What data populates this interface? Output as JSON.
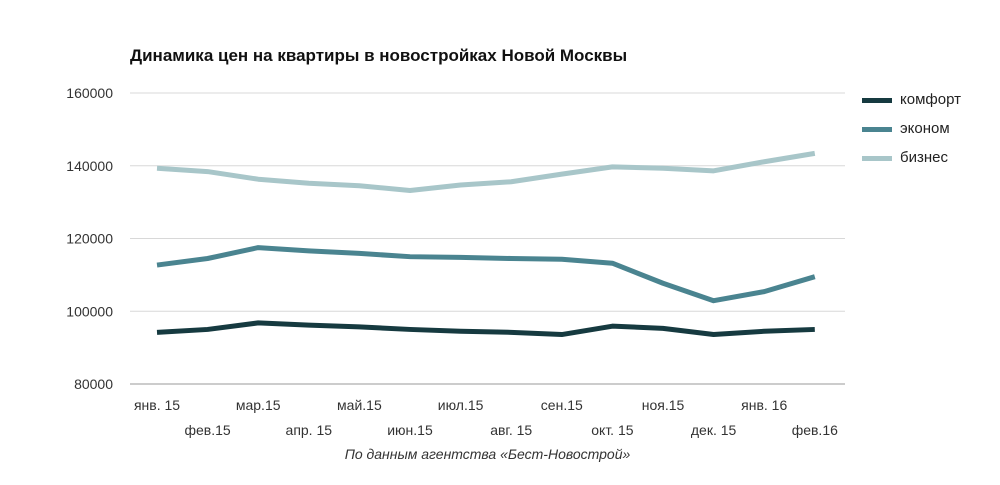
{
  "chart_data": {
    "type": "line",
    "title": "Динамика цен на квартиры в новостройках Новой Москвы",
    "source": "По данным агентства «Бест-Новострой»",
    "categories": [
      "янв. 15",
      "фев.15",
      "мар.15",
      "апр. 15",
      "май.15",
      "июн.15",
      "июл.15",
      "авг. 15",
      "сен.15",
      "окт. 15",
      "ноя.15",
      "дек. 15",
      "янв. 16",
      "фев.16"
    ],
    "ylim": [
      80000,
      160000
    ],
    "yticks": [
      "80000",
      "100000",
      "120000",
      "140000",
      "160000"
    ],
    "legend_position": "right",
    "series": [
      {
        "name": "комфорт",
        "color": "#163a40",
        "values": [
          94200,
          95000,
          96800,
          96200,
          95700,
          95000,
          94500,
          94200,
          93600,
          95900,
          95300,
          93600,
          94500,
          95000
        ]
      },
      {
        "name": "эконом",
        "color": "#4a8490",
        "values": [
          112700,
          114500,
          117500,
          116600,
          115900,
          115000,
          114800,
          114500,
          114300,
          113200,
          107700,
          102900,
          105400,
          109500
        ]
      },
      {
        "name": "бизнес",
        "color": "#a8c6c9",
        "values": [
          139300,
          138400,
          136300,
          135200,
          134500,
          133200,
          134700,
          135600,
          137700,
          139700,
          139300,
          138600,
          141100,
          143400
        ]
      }
    ]
  }
}
